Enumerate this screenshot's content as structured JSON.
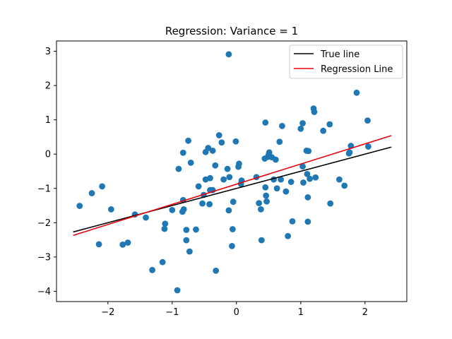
{
  "chart_data": {
    "type": "scatter",
    "title": "Regression: Variance = 1",
    "xlabel": "",
    "ylabel": "",
    "xlim": [
      -2.8,
      2.65
    ],
    "ylim": [
      -4.3,
      3.3
    ],
    "xticks": [
      -2,
      -1,
      0,
      1,
      2
    ],
    "xtick_labels": [
      "−2",
      "−1",
      "0",
      "1",
      "2"
    ],
    "yticks": [
      -4,
      -3,
      -2,
      -1,
      0,
      1,
      2,
      3
    ],
    "ytick_labels": [
      "−4",
      "−3",
      "−2",
      "−1",
      "0",
      "1",
      "2",
      "3"
    ],
    "grid": false,
    "legend_position": "top-right",
    "legend": [
      {
        "label": "True line",
        "color": "#000000"
      },
      {
        "label": "Regression Line",
        "color": "#e8000b"
      }
    ],
    "series": [
      {
        "kind": "scatter",
        "color": "#1f77b4",
        "points": [
          [
            -2.44,
            -1.51
          ],
          [
            -2.25,
            -1.14
          ],
          [
            -2.14,
            -2.63
          ],
          [
            -2.09,
            -0.94
          ],
          [
            -1.95,
            -1.61
          ],
          [
            -1.77,
            -2.64
          ],
          [
            -1.69,
            -2.58
          ],
          [
            -1.58,
            -1.76
          ],
          [
            -1.41,
            -1.85
          ],
          [
            -1.31,
            -3.38
          ],
          [
            -1.15,
            -3.15
          ],
          [
            -1.12,
            -2.18
          ],
          [
            -1.11,
            -2.03
          ],
          [
            -1.0,
            -1.63
          ],
          [
            -0.92,
            -3.97
          ],
          [
            -0.9,
            -0.43
          ],
          [
            -0.84,
            -1.68
          ],
          [
            -0.83,
            -1.34
          ],
          [
            -0.83,
            0.04
          ],
          [
            -0.82,
            -1.61
          ],
          [
            -0.78,
            -2.21
          ],
          [
            -0.78,
            -2.51
          ],
          [
            -0.75,
            0.39
          ],
          [
            -0.73,
            -2.84
          ],
          [
            -0.71,
            -0.25
          ],
          [
            -0.63,
            -2.2
          ],
          [
            -0.59,
            -0.94
          ],
          [
            -0.53,
            -1.44
          ],
          [
            -0.51,
            -1.19
          ],
          [
            -0.48,
            0.06
          ],
          [
            -0.48,
            -0.74
          ],
          [
            -0.44,
            0.18
          ],
          [
            -0.42,
            -1.46
          ],
          [
            -0.41,
            -0.7
          ],
          [
            -0.41,
            -1.05
          ],
          [
            -0.37,
            0.1
          ],
          [
            -0.37,
            -1.05
          ],
          [
            -0.33,
            -0.33
          ],
          [
            -0.32,
            -3.4
          ],
          [
            -0.27,
            0.55
          ],
          [
            -0.23,
            0.34
          ],
          [
            -0.2,
            -0.74
          ],
          [
            -0.14,
            -0.43
          ],
          [
            -0.12,
            2.91
          ],
          [
            -0.12,
            -1.64
          ],
          [
            -0.11,
            -0.67
          ],
          [
            -0.07,
            -2.68
          ],
          [
            -0.06,
            -2.19
          ],
          [
            -0.05,
            -1.39
          ],
          [
            -0.01,
            0.37
          ],
          [
            0.03,
            -0.37
          ],
          [
            0.04,
            -0.28
          ],
          [
            0.07,
            -0.87
          ],
          [
            0.08,
            -0.77
          ],
          [
            0.31,
            -0.67
          ],
          [
            0.35,
            -1.43
          ],
          [
            0.38,
            -1.61
          ],
          [
            0.39,
            -2.51
          ],
          [
            0.44,
            -0.13
          ],
          [
            0.45,
            0.92
          ],
          [
            0.45,
            -0.97
          ],
          [
            0.46,
            -1.21
          ],
          [
            0.47,
            -1.38
          ],
          [
            0.49,
            -0.08
          ],
          [
            0.5,
            -0.02
          ],
          [
            0.51,
            0.05
          ],
          [
            0.55,
            -0.09
          ],
          [
            0.58,
            -0.74
          ],
          [
            0.61,
            -0.16
          ],
          [
            0.63,
            -1.0
          ],
          [
            0.67,
            0.36
          ],
          [
            0.69,
            -0.74
          ],
          [
            0.71,
            0.82
          ],
          [
            0.77,
            -1.09
          ],
          [
            0.8,
            -2.39
          ],
          [
            0.85,
            -0.81
          ],
          [
            0.87,
            -1.96
          ],
          [
            1.0,
            0.74
          ],
          [
            1.03,
            -0.36
          ],
          [
            1.03,
            0.9
          ],
          [
            1.04,
            -0.83
          ],
          [
            1.09,
            0.1
          ],
          [
            1.1,
            -0.58
          ],
          [
            1.11,
            -1.26
          ],
          [
            1.11,
            -1.97
          ],
          [
            1.12,
            0.09
          ],
          [
            1.14,
            -0.72
          ],
          [
            1.2,
            1.33
          ],
          [
            1.21,
            1.23
          ],
          [
            1.23,
            -0.68
          ],
          [
            1.35,
            0.68
          ],
          [
            1.45,
            0.87
          ],
          [
            1.46,
            -1.44
          ],
          [
            1.6,
            -0.74
          ],
          [
            1.68,
            -0.92
          ],
          [
            1.75,
            0.02
          ],
          [
            1.76,
            0.05
          ],
          [
            1.78,
            0.24
          ],
          [
            1.87,
            1.79
          ],
          [
            2.04,
            0.98
          ],
          [
            2.05,
            0.22
          ]
        ]
      },
      {
        "kind": "line",
        "name": "True line",
        "color": "#000000",
        "x": [
          -2.54,
          2.41
        ],
        "y": [
          -2.27,
          0.205
        ]
      },
      {
        "kind": "line",
        "name": "Regression Line",
        "color": "#e8000b",
        "x": [
          -2.54,
          2.41
        ],
        "y": [
          -2.37,
          0.54
        ]
      }
    ]
  }
}
